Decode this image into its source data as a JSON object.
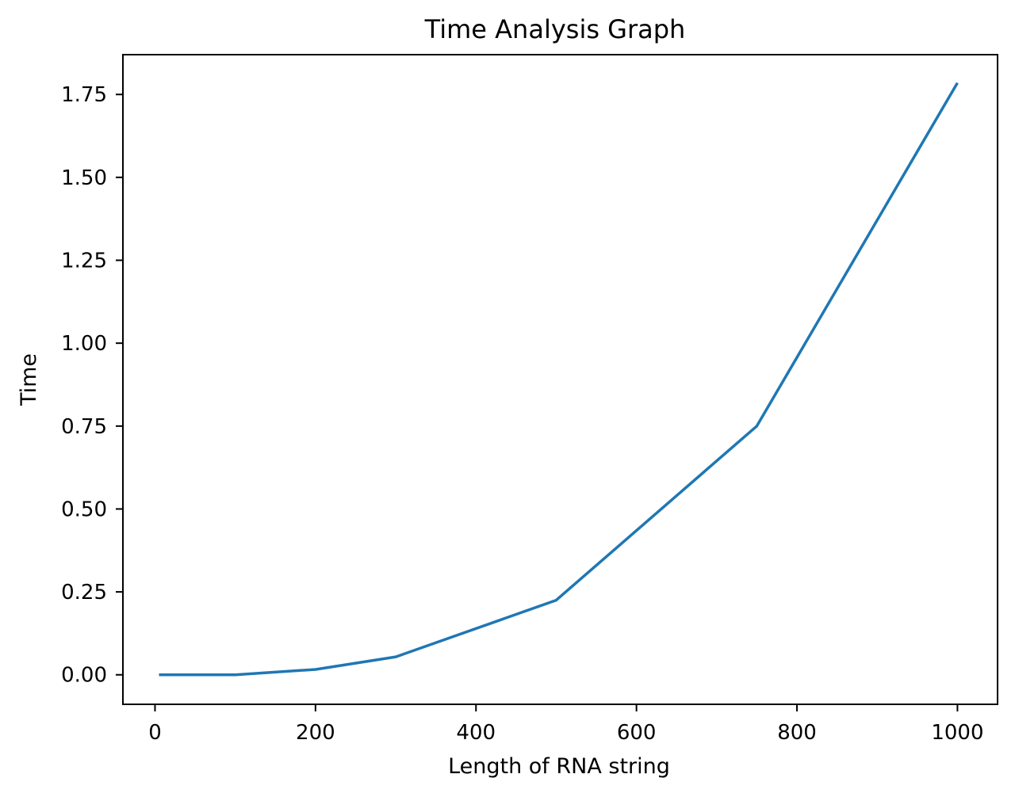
{
  "chart_data": {
    "type": "line",
    "title": "Time Analysis Graph",
    "xlabel": "Length of RNA string",
    "ylabel": "Time",
    "xlim": [
      -40,
      1050
    ],
    "ylim": [
      -0.089,
      1.87
    ],
    "xticks": [
      0,
      200,
      400,
      600,
      800,
      1000
    ],
    "xtick_labels": [
      "0",
      "200",
      "400",
      "600",
      "800",
      "1000"
    ],
    "yticks": [
      0,
      0.25,
      0.5,
      0.75,
      1.0,
      1.25,
      1.5,
      1.75
    ],
    "ytick_labels": [
      "0.00",
      "0.25",
      "0.50",
      "0.75",
      "1.00",
      "1.25",
      "1.50",
      "1.75"
    ],
    "grid": false,
    "series": [
      {
        "color": "#1f77b4",
        "x": [
          5,
          100,
          200,
          300,
          500,
          750,
          1000
        ],
        "y": [
          0.0,
          0.0,
          0.016,
          0.054,
          0.225,
          0.75,
          1.785
        ]
      }
    ]
  }
}
